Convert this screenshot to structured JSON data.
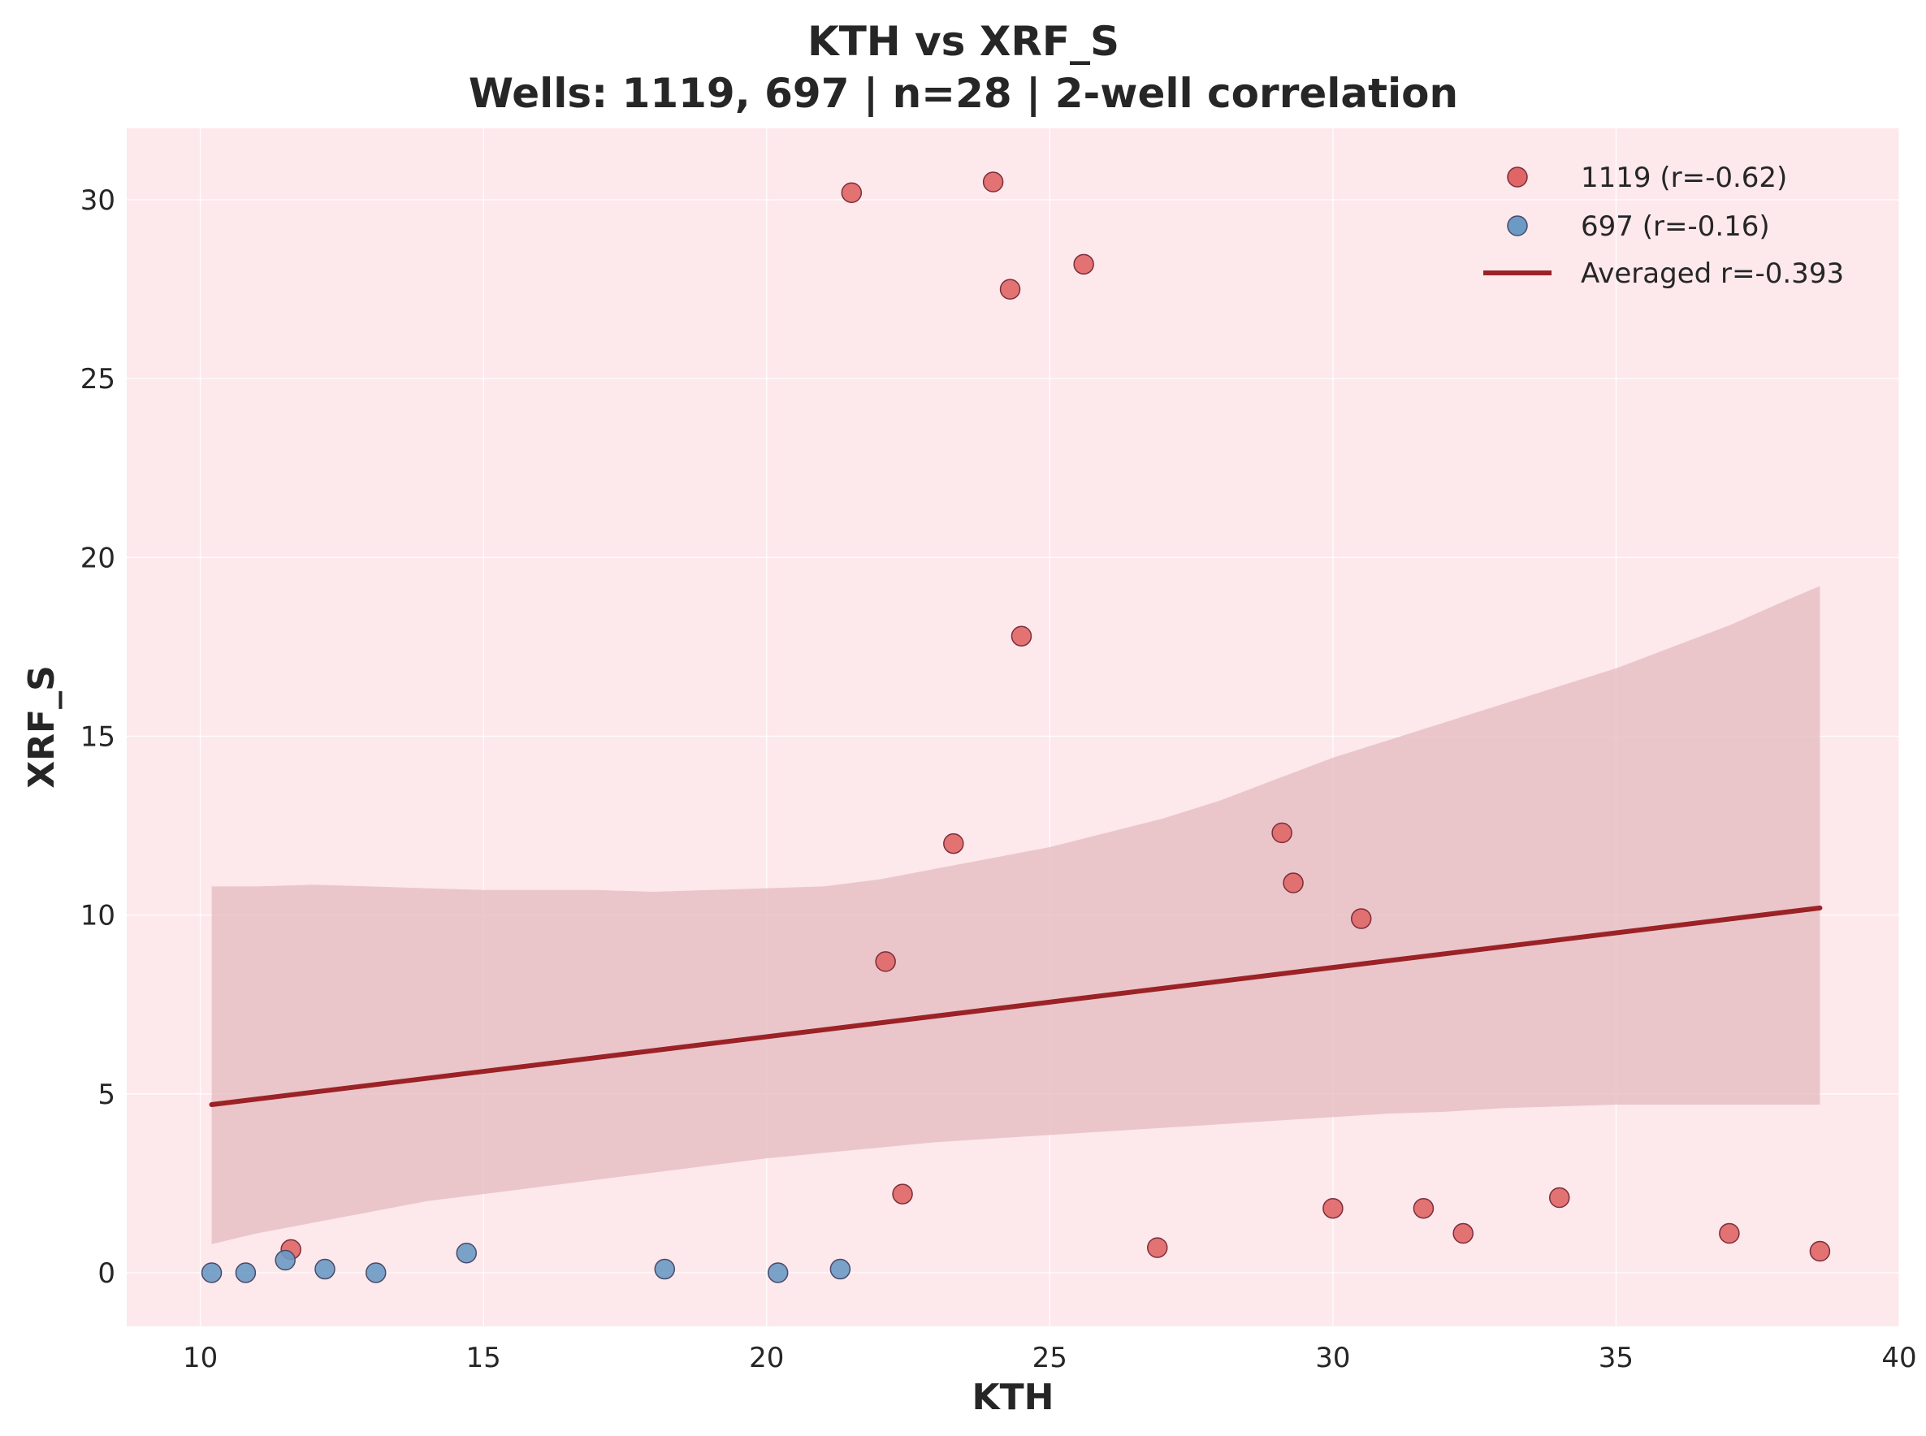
{
  "chart_data": {
    "type": "scatter",
    "title": "KTH vs XRF_S",
    "subtitle": "Wells: 1119, 697 | n=28 | 2-well correlation",
    "xlabel": "KTH",
    "ylabel": "XRF_S",
    "xlim": [
      8.7,
      40
    ],
    "ylim": [
      -1.5,
      32
    ],
    "xticks": [
      10,
      15,
      20,
      25,
      30,
      35,
      40
    ],
    "yticks": [
      0,
      5,
      10,
      15,
      20,
      25,
      30
    ],
    "grid": true,
    "legend_position": "top-right",
    "colors": {
      "background": "#fde8ec",
      "series_1119": "#e06666",
      "series_697": "#6b9ac4",
      "fit_line": "#9b2226",
      "band": "#e6bfc4"
    },
    "series": [
      {
        "name": "1119 (r=-0.62)",
        "points": [
          {
            "x": 21.5,
            "y": 30.2
          },
          {
            "x": 24.0,
            "y": 30.5
          },
          {
            "x": 24.3,
            "y": 27.5
          },
          {
            "x": 25.6,
            "y": 28.2
          },
          {
            "x": 24.5,
            "y": 17.8
          },
          {
            "x": 23.3,
            "y": 12.0
          },
          {
            "x": 22.1,
            "y": 8.7
          },
          {
            "x": 22.4,
            "y": 2.2
          },
          {
            "x": 29.1,
            "y": 12.3
          },
          {
            "x": 29.3,
            "y": 10.9
          },
          {
            "x": 30.5,
            "y": 9.9
          },
          {
            "x": 30.0,
            "y": 1.8
          },
          {
            "x": 31.6,
            "y": 1.8
          },
          {
            "x": 32.3,
            "y": 1.1
          },
          {
            "x": 34.0,
            "y": 2.1
          },
          {
            "x": 26.9,
            "y": 0.7
          },
          {
            "x": 37.0,
            "y": 1.1
          },
          {
            "x": 38.6,
            "y": 0.6
          },
          {
            "x": 11.6,
            "y": 0.65
          }
        ]
      },
      {
        "name": "697 (r=-0.16)",
        "points": [
          {
            "x": 10.2,
            "y": 0.0
          },
          {
            "x": 10.8,
            "y": 0.0
          },
          {
            "x": 11.5,
            "y": 0.35
          },
          {
            "x": 12.2,
            "y": 0.1
          },
          {
            "x": 13.1,
            "y": 0.0
          },
          {
            "x": 14.7,
            "y": 0.55
          },
          {
            "x": 18.2,
            "y": 0.1
          },
          {
            "x": 20.2,
            "y": 0.0
          },
          {
            "x": 21.3,
            "y": 0.1
          }
        ]
      }
    ],
    "fit_line": {
      "name": "Averaged r=-0.393",
      "x": [
        10.2,
        38.6
      ],
      "y": [
        4.7,
        10.2
      ]
    },
    "confidence_band": {
      "x": [
        10.2,
        11,
        12,
        13,
        14,
        15,
        16,
        17,
        18,
        19,
        20,
        21,
        22,
        23,
        24,
        25,
        26,
        27,
        28,
        29,
        30,
        31,
        32,
        33,
        34,
        35,
        36,
        37,
        38,
        38.6
      ],
      "upper": [
        10.8,
        10.8,
        10.85,
        10.8,
        10.75,
        10.7,
        10.7,
        10.7,
        10.65,
        10.7,
        10.75,
        10.8,
        11.0,
        11.3,
        11.6,
        11.9,
        12.3,
        12.7,
        13.2,
        13.8,
        14.4,
        14.9,
        15.4,
        15.9,
        16.4,
        16.9,
        17.5,
        18.1,
        18.8,
        19.2
      ],
      "lower": [
        0.8,
        1.1,
        1.4,
        1.7,
        2.0,
        2.2,
        2.4,
        2.6,
        2.8,
        3.0,
        3.2,
        3.35,
        3.5,
        3.65,
        3.75,
        3.85,
        3.95,
        4.05,
        4.15,
        4.25,
        4.35,
        4.45,
        4.5,
        4.6,
        4.65,
        4.7,
        4.7,
        4.7,
        4.7,
        4.7
      ]
    }
  }
}
